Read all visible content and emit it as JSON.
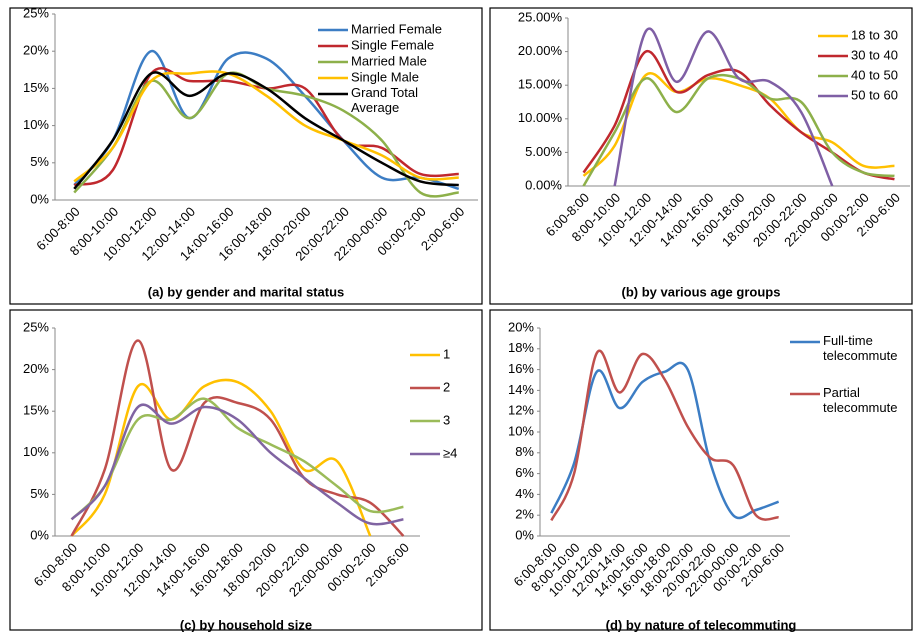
{
  "chart_data": [
    {
      "type": "line",
      "title": "(a) by gender  and marital  status",
      "categories": [
        "6:00-8:00",
        "8:00-10:00",
        "10:00-12:00",
        "12:00-14:00",
        "14:00-16:00",
        "16:00-18:00",
        "18:00-20:00",
        "20:00-22:00",
        "22:00-00:00",
        "00:00-2:00",
        "2:00-6:00"
      ],
      "ylim": [
        0,
        25
      ],
      "yticks": [
        {
          "value": 0,
          "label": "0%"
        },
        {
          "value": 5,
          "label": "5%"
        },
        {
          "value": 10,
          "label": "10%"
        },
        {
          "value": 15,
          "label": "15%"
        },
        {
          "value": 20,
          "label": "20%"
        },
        {
          "value": 25,
          "label": "25%"
        }
      ],
      "series": [
        {
          "name": "Married Female",
          "color": "#3c7dc4",
          "values": [
            2,
            8,
            20,
            11,
            19,
            19,
            14,
            8,
            3,
            3,
            1.5
          ]
        },
        {
          "name": "Single Female",
          "color": "#c0282e",
          "values": [
            2,
            4,
            17,
            16,
            16,
            15,
            15,
            8,
            7,
            3.5,
            3.5
          ]
        },
        {
          "name": "Married Male",
          "color": "#8db04a",
          "values": [
            1,
            7,
            16,
            11,
            17,
            15,
            14,
            12,
            8,
            1,
            1
          ]
        },
        {
          "name": "Single Male",
          "color": "#ffc000",
          "values": [
            2.5,
            7,
            16,
            17,
            17,
            14,
            10,
            8,
            6,
            3,
            3
          ]
        },
        {
          "name": "Grand Total Average",
          "color": "#000000",
          "values": [
            1.5,
            8,
            17,
            14,
            17,
            15,
            11,
            8,
            5,
            2.5,
            2
          ]
        }
      ]
    },
    {
      "type": "line",
      "title": "(b) by various age groups",
      "categories": [
        "6:00-8:00",
        "8:00-10:00",
        "10:00-12:00",
        "12:00-14:00",
        "14:00-16:00",
        "16:00-18:00",
        "18:00-20:00",
        "20:00-22:00",
        "22:00-00:00",
        "00:00-2:00",
        "2:00-6:00"
      ],
      "ylim": [
        0,
        25
      ],
      "yticks": [
        {
          "value": 0,
          "label": "0.00%"
        },
        {
          "value": 5,
          "label": "5.00%"
        },
        {
          "value": 10,
          "label": "10.00%"
        },
        {
          "value": 15,
          "label": "15.00%"
        },
        {
          "value": 20,
          "label": "20.00%"
        },
        {
          "value": 25,
          "label": "25.00%"
        }
      ],
      "series": [
        {
          "name": "18 to 30",
          "color": "#ffc000",
          "values": [
            1.5,
            6,
            16.5,
            14,
            16,
            15,
            13,
            8,
            6.5,
            3,
            3
          ]
        },
        {
          "name": "30 to 40",
          "color": "#c0282e",
          "values": [
            2,
            9,
            20,
            14,
            16.5,
            17,
            12,
            8,
            5,
            2,
            1
          ]
        },
        {
          "name": "40 to 50",
          "color": "#8db04a",
          "values": [
            0,
            8,
            16,
            11,
            16,
            16,
            13,
            12.5,
            5,
            2,
            1.5
          ]
        },
        {
          "name": "50 to 60",
          "color": "#7f5fa5",
          "values": [
            null,
            0,
            23,
            15.5,
            23,
            16,
            15.5,
            11,
            0,
            null,
            null
          ]
        }
      ]
    },
    {
      "type": "line",
      "title": "(c) by household size",
      "categories": [
        "6:00-8:00",
        "8:00-10:00",
        "10:00-12:00",
        "12:00-14:00",
        "14:00-16:00",
        "16:00-18:00",
        "18:00-20:00",
        "20:00-22:00",
        "22:00-00:00",
        "00:00-2:00",
        "2:00-6:00"
      ],
      "ylim": [
        0,
        25
      ],
      "yticks": [
        {
          "value": 0,
          "label": "0%"
        },
        {
          "value": 5,
          "label": "5%"
        },
        {
          "value": 10,
          "label": "10%"
        },
        {
          "value": 15,
          "label": "15%"
        },
        {
          "value": 20,
          "label": "20%"
        },
        {
          "value": 25,
          "label": "25%"
        }
      ],
      "series": [
        {
          "name": "1",
          "color": "#ffc000",
          "values": [
            0,
            5,
            18,
            14,
            18,
            18.5,
            15,
            8,
            9,
            0,
            null
          ]
        },
        {
          "name": "2",
          "color": "#c0504d",
          "values": [
            0,
            8,
            23.5,
            8,
            16,
            16,
            14,
            7,
            5,
            4,
            0
          ]
        },
        {
          "name": "3",
          "color": "#9bbb59",
          "values": [
            2,
            6,
            14,
            14,
            16.5,
            13,
            11,
            9,
            6,
            3,
            3.5
          ]
        },
        {
          "name": "≥4",
          "color": "#8064a2",
          "values": [
            2,
            6,
            15.5,
            13.5,
            15.5,
            14,
            10,
            7,
            4,
            1.5,
            2
          ]
        }
      ]
    },
    {
      "type": "line",
      "title": "(d) by nature of telecommuting",
      "categories": [
        "6:00-8:00",
        "8:00-10:00",
        "10:00-12:00",
        "12:00-14:00",
        "14:00-16:00",
        "16:00-18:00",
        "18:00-20:00",
        "20:00-22:00",
        "22:00-00:00",
        "00:00-2:00",
        "2:00-6:00"
      ],
      "ylim": [
        0,
        20
      ],
      "yticks": [
        {
          "value": 0,
          "label": "0%"
        },
        {
          "value": 2,
          "label": "2%"
        },
        {
          "value": 4,
          "label": "4%"
        },
        {
          "value": 6,
          "label": "6%"
        },
        {
          "value": 8,
          "label": "8%"
        },
        {
          "value": 10,
          "label": "10%"
        },
        {
          "value": 12,
          "label": "12%"
        },
        {
          "value": 14,
          "label": "14%"
        },
        {
          "value": 16,
          "label": "16%"
        },
        {
          "value": 18,
          "label": "18%"
        },
        {
          "value": 20,
          "label": "20%"
        }
      ],
      "series": [
        {
          "name": "Full-time telecommute",
          "color": "#3c7dc4",
          "values": [
            2.2,
            7,
            15.8,
            12.3,
            14.8,
            15.8,
            16,
            7,
            2,
            2.5,
            3.3
          ]
        },
        {
          "name": "Partial telecommute",
          "color": "#c0504d",
          "values": [
            1.5,
            6,
            17.6,
            13.8,
            17.5,
            15,
            10.5,
            7.5,
            6.8,
            2,
            1.8
          ]
        }
      ]
    }
  ]
}
